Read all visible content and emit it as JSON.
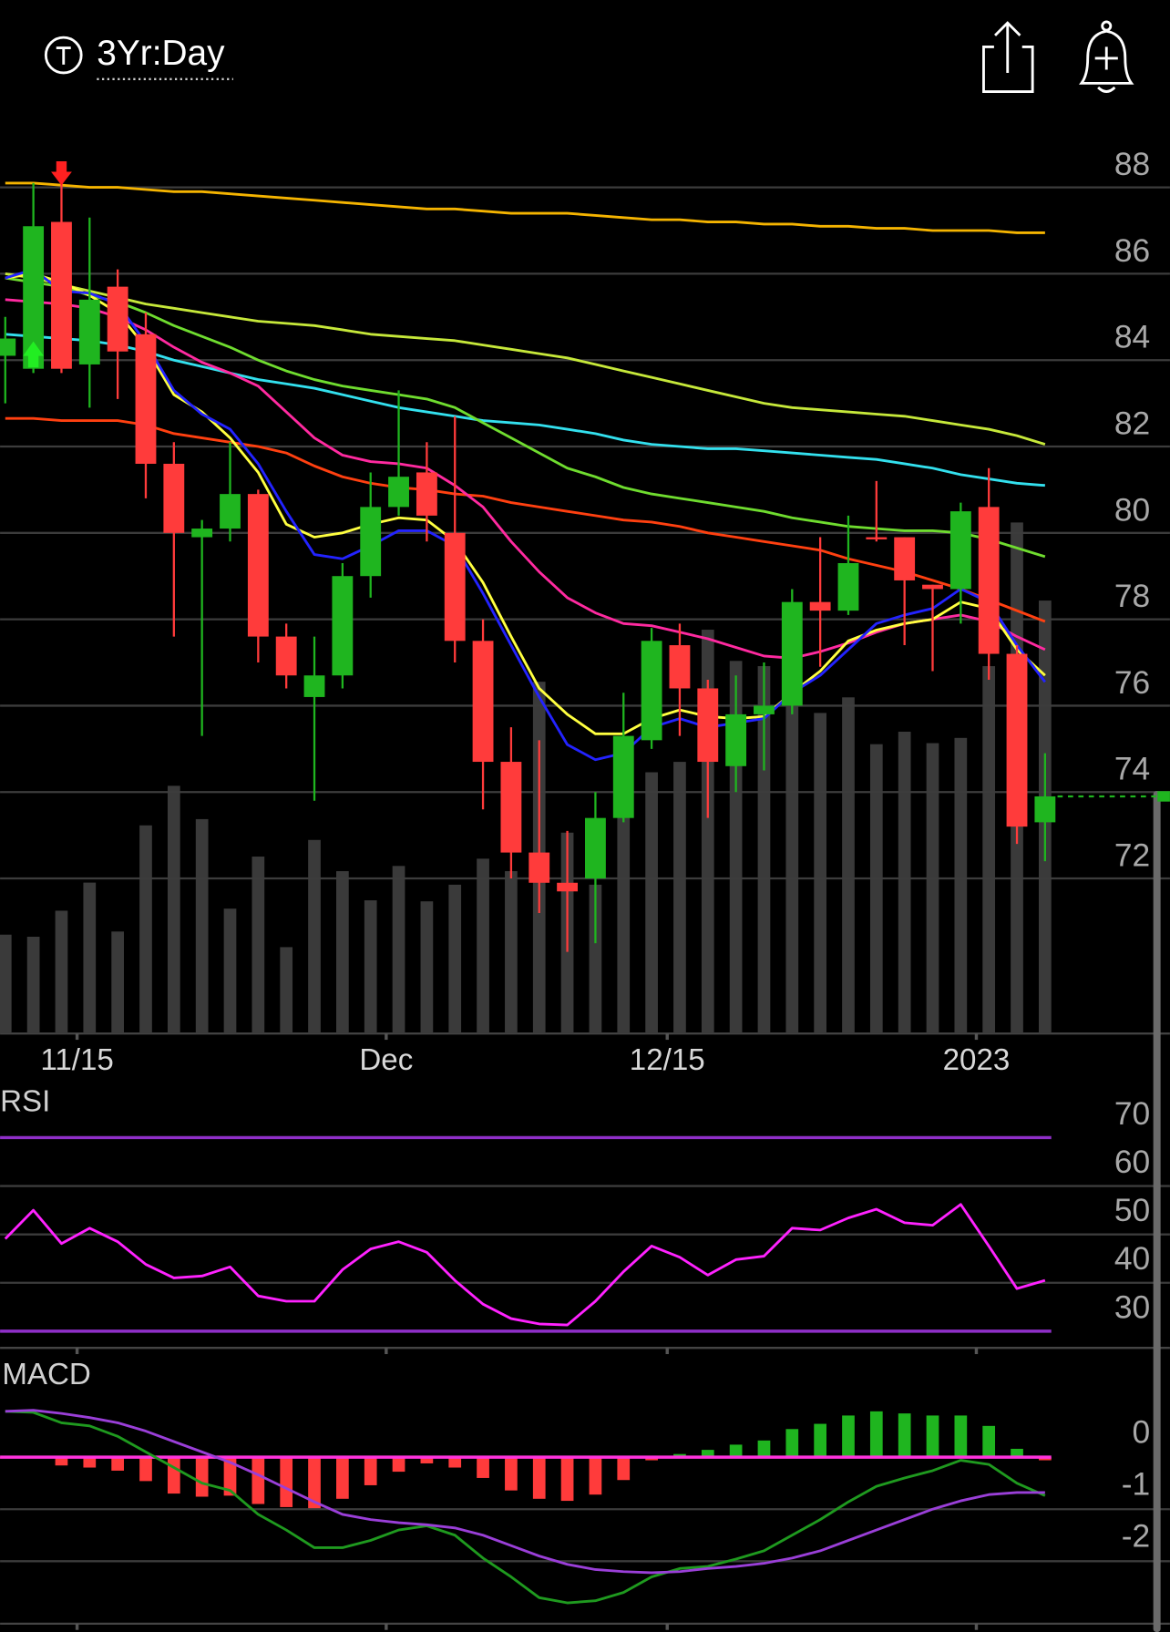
{
  "header": {
    "timeframe": "3Yr:Day"
  },
  "chart_data": [
    {
      "type": "candlestick",
      "categories": [
        null,
        null,
        null,
        "11/15",
        null,
        null,
        null,
        null,
        null,
        null,
        null,
        null,
        null,
        null,
        "Dec",
        null,
        null,
        null,
        null,
        null,
        null,
        null,
        null,
        null,
        "12/15",
        null,
        null,
        null,
        null,
        null,
        null,
        null,
        null,
        null,
        null,
        "2023",
        null,
        null
      ],
      "open": [
        84.1,
        83.8,
        87.2,
        83.9,
        85.7,
        84.6,
        81.6,
        79.9,
        80.1,
        80.9,
        77.6,
        76.2,
        76.7,
        79.0,
        80.6,
        81.4,
        80.0,
        77.5,
        74.7,
        72.6,
        71.9,
        72.0,
        73.4,
        75.2,
        77.4,
        76.4,
        74.6,
        75.8,
        76.0,
        78.4,
        78.2,
        79.9,
        79.9,
        78.8,
        78.7,
        80.6,
        77.2,
        73.3
      ],
      "high": [
        85.0,
        88.1,
        88.1,
        87.3,
        86.1,
        85.1,
        82.1,
        80.3,
        82.1,
        81.0,
        77.9,
        77.6,
        79.3,
        81.4,
        83.3,
        82.1,
        82.7,
        78.0,
        75.5,
        75.2,
        73.1,
        74.0,
        76.3,
        77.8,
        77.9,
        76.6,
        76.7,
        77.0,
        78.7,
        79.9,
        80.4,
        81.2,
        79.9,
        78.8,
        80.7,
        81.5,
        77.4,
        74.9
      ],
      "low": [
        83.0,
        83.7,
        83.7,
        82.9,
        83.1,
        80.8,
        77.6,
        75.3,
        79.8,
        77.0,
        76.4,
        73.8,
        76.4,
        78.5,
        80.4,
        79.8,
        77.0,
        73.6,
        72.0,
        71.2,
        70.3,
        70.5,
        73.3,
        75.0,
        75.3,
        73.4,
        74.0,
        74.5,
        75.8,
        76.9,
        78.1,
        79.8,
        77.4,
        76.8,
        77.9,
        76.6,
        72.8,
        72.4
      ],
      "close": [
        84.5,
        87.1,
        83.8,
        85.4,
        84.2,
        81.6,
        80.0,
        80.1,
        80.9,
        77.6,
        76.7,
        76.7,
        79.0,
        80.6,
        81.3,
        80.4,
        77.5,
        74.7,
        72.6,
        71.9,
        71.7,
        73.4,
        75.3,
        77.5,
        76.4,
        74.7,
        75.8,
        76.0,
        78.4,
        78.2,
        79.3,
        79.85,
        78.9,
        78.7,
        80.5,
        77.2,
        73.2,
        73.9
      ],
      "volume": [
        95,
        93,
        118,
        145,
        98,
        200,
        238,
        206,
        120,
        170,
        83,
        186,
        156,
        128,
        161,
        127,
        143,
        168,
        156,
        338,
        193,
        143,
        223,
        251,
        261,
        388,
        358,
        353,
        338,
        308,
        323,
        278,
        290,
        279,
        284,
        353,
        491,
        416
      ],
      "volume_lim": [
        0,
        833
      ],
      "volume_color": "#3a3a3a",
      "up_color": "#1fb51f",
      "down_color": "#ff3b3b",
      "ylim": [
        68,
        90
      ],
      "yticks": [
        72,
        74,
        76,
        78,
        80,
        82,
        84,
        86,
        88
      ],
      "grid": true,
      "series": [
        {
          "color": "#f5b400",
          "values": [
            88.1,
            88.1,
            88.05,
            88.0,
            88.0,
            87.95,
            87.9,
            87.9,
            87.85,
            87.8,
            87.75,
            87.7,
            87.65,
            87.6,
            87.55,
            87.5,
            87.5,
            87.45,
            87.4,
            87.4,
            87.4,
            87.35,
            87.3,
            87.25,
            87.25,
            87.2,
            87.2,
            87.15,
            87.15,
            87.1,
            87.1,
            87.05,
            87.05,
            87.0,
            87.0,
            87.0,
            86.95,
            86.95
          ]
        },
        {
          "color": "#c6e83a",
          "values": [
            86.0,
            85.9,
            85.75,
            85.6,
            85.45,
            85.3,
            85.2,
            85.1,
            85.0,
            84.9,
            84.85,
            84.8,
            84.7,
            84.6,
            84.55,
            84.5,
            84.45,
            84.35,
            84.25,
            84.15,
            84.05,
            83.9,
            83.75,
            83.6,
            83.45,
            83.3,
            83.15,
            83.0,
            82.9,
            82.85,
            82.8,
            82.75,
            82.7,
            82.6,
            82.5,
            82.4,
            82.25,
            82.05
          ]
        },
        {
          "color": "#33e0ee",
          "values": [
            84.6,
            84.55,
            84.5,
            84.45,
            84.35,
            84.2,
            84.0,
            83.85,
            83.7,
            83.55,
            83.45,
            83.35,
            83.2,
            83.05,
            82.9,
            82.8,
            82.7,
            82.6,
            82.55,
            82.5,
            82.4,
            82.3,
            82.15,
            82.05,
            82.0,
            81.95,
            81.95,
            81.9,
            81.85,
            81.8,
            81.75,
            81.7,
            81.6,
            81.5,
            81.35,
            81.25,
            81.15,
            81.1
          ]
        },
        {
          "color": "#6fdc2f",
          "values": [
            85.9,
            85.8,
            85.7,
            85.5,
            85.35,
            85.1,
            84.8,
            84.55,
            84.3,
            84.0,
            83.75,
            83.55,
            83.4,
            83.3,
            83.2,
            83.1,
            82.9,
            82.55,
            82.2,
            81.85,
            81.5,
            81.3,
            81.05,
            80.9,
            80.8,
            80.7,
            80.6,
            80.5,
            80.35,
            80.25,
            80.15,
            80.1,
            80.05,
            80.05,
            80.0,
            79.85,
            79.65,
            79.45
          ]
        },
        {
          "color": "#ff4010",
          "values": [
            82.65,
            82.65,
            82.6,
            82.6,
            82.6,
            82.5,
            82.3,
            82.2,
            82.1,
            82.0,
            81.85,
            81.55,
            81.3,
            81.15,
            81.05,
            81.0,
            80.9,
            80.85,
            80.7,
            80.6,
            80.5,
            80.4,
            80.3,
            80.25,
            80.15,
            80.0,
            79.9,
            79.8,
            79.7,
            79.6,
            79.4,
            79.25,
            79.1,
            78.9,
            78.7,
            78.45,
            78.2,
            77.95
          ]
        },
        {
          "color": "#ff2aa0",
          "values": [
            85.4,
            85.35,
            85.3,
            85.2,
            85.0,
            84.7,
            84.3,
            83.95,
            83.7,
            83.4,
            82.8,
            82.2,
            81.8,
            81.65,
            81.6,
            81.5,
            81.1,
            80.6,
            79.8,
            79.1,
            78.5,
            78.15,
            77.9,
            77.85,
            77.7,
            77.55,
            77.35,
            77.15,
            77.1,
            77.25,
            77.45,
            77.7,
            77.9,
            78.0,
            78.1,
            77.95,
            77.6,
            77.3
          ]
        },
        {
          "color": "#ffff40",
          "values": [
            85.9,
            86.0,
            85.8,
            85.5,
            85.1,
            84.3,
            83.2,
            82.8,
            82.2,
            81.4,
            80.2,
            79.9,
            80.0,
            80.2,
            80.35,
            80.3,
            79.8,
            78.85,
            77.6,
            76.4,
            75.8,
            75.35,
            75.35,
            75.7,
            75.9,
            75.75,
            75.7,
            75.75,
            76.3,
            76.8,
            77.5,
            77.75,
            77.9,
            78.0,
            78.4,
            78.25,
            77.3,
            76.7
          ]
        },
        {
          "color": "#2323ff",
          "values": [
            85.9,
            86.1,
            85.6,
            85.55,
            85.3,
            84.4,
            83.3,
            82.75,
            82.4,
            81.6,
            80.5,
            79.5,
            79.4,
            79.7,
            80.05,
            80.05,
            79.7,
            78.6,
            77.4,
            76.2,
            75.1,
            74.75,
            74.9,
            75.5,
            75.7,
            75.5,
            75.6,
            75.7,
            76.3,
            76.7,
            77.3,
            77.9,
            78.1,
            78.25,
            78.7,
            78.4,
            77.4,
            76.55
          ]
        }
      ]
    },
    {
      "type": "line",
      "title": "RSI",
      "color": "#ff22ff",
      "band_color": "#8f2fc8",
      "values": [
        49.1,
        55.0,
        48.1,
        51.3,
        48.5,
        43.8,
        41.0,
        41.4,
        43.3,
        37.3,
        36.2,
        36.2,
        42.7,
        47.0,
        48.5,
        46.3,
        40.5,
        35.6,
        32.6,
        31.5,
        31.3,
        36.2,
        42.3,
        47.6,
        45.3,
        41.6,
        44.8,
        45.5,
        51.3,
        50.9,
        53.4,
        55.2,
        52.4,
        51.9,
        56.2,
        47.6,
        38.8,
        40.5
      ],
      "ylim": [
        25,
        80
      ],
      "yticks": [
        70,
        60,
        50,
        40,
        30
      ]
    },
    {
      "type": "macd",
      "title": "MACD",
      "zero_line_color": "#ff33dd",
      "series": [
        {
          "color": "#1f9a1f",
          "values": [
            0.88,
            0.86,
            0.66,
            0.6,
            0.4,
            0.1,
            -0.2,
            -0.5,
            -0.64,
            -1.1,
            -1.4,
            -1.74,
            -1.74,
            -1.6,
            -1.4,
            -1.32,
            -1.5,
            -1.94,
            -2.3,
            -2.7,
            -2.8,
            -2.76,
            -2.6,
            -2.3,
            -2.14,
            -2.1,
            -1.96,
            -1.8,
            -1.5,
            -1.2,
            -0.86,
            -0.56,
            -0.4,
            -0.26,
            -0.06,
            -0.14,
            -0.5,
            -0.74
          ]
        },
        {
          "color": "#9a3fd8",
          "values": [
            0.88,
            0.9,
            0.84,
            0.76,
            0.66,
            0.5,
            0.3,
            0.1,
            -0.1,
            -0.34,
            -0.6,
            -0.86,
            -1.1,
            -1.2,
            -1.26,
            -1.3,
            -1.36,
            -1.5,
            -1.7,
            -1.9,
            -2.06,
            -2.16,
            -2.2,
            -2.22,
            -2.2,
            -2.14,
            -2.1,
            -2.04,
            -1.94,
            -1.8,
            -1.6,
            -1.4,
            -1.2,
            -1.0,
            -0.84,
            -0.72,
            -0.68,
            -0.68
          ]
        }
      ],
      "histogram": [
        -0.02,
        0,
        -0.16,
        -0.2,
        -0.26,
        -0.46,
        -0.7,
        -0.76,
        -0.74,
        -0.9,
        -0.96,
        -1.0,
        -0.8,
        -0.54,
        -0.28,
        -0.12,
        -0.2,
        -0.4,
        -0.64,
        -0.8,
        -0.84,
        -0.72,
        -0.44,
        -0.06,
        0.06,
        0.14,
        0.24,
        0.32,
        0.54,
        0.64,
        0.8,
        0.88,
        0.84,
        0.8,
        0.8,
        0.6,
        0.16,
        -0.06
      ],
      "up_color": "#1fb51f",
      "down_color": "#ff3b3b",
      "ylim": [
        -3.2,
        1.9
      ],
      "yticks": [
        0,
        -1,
        -2
      ]
    }
  ]
}
